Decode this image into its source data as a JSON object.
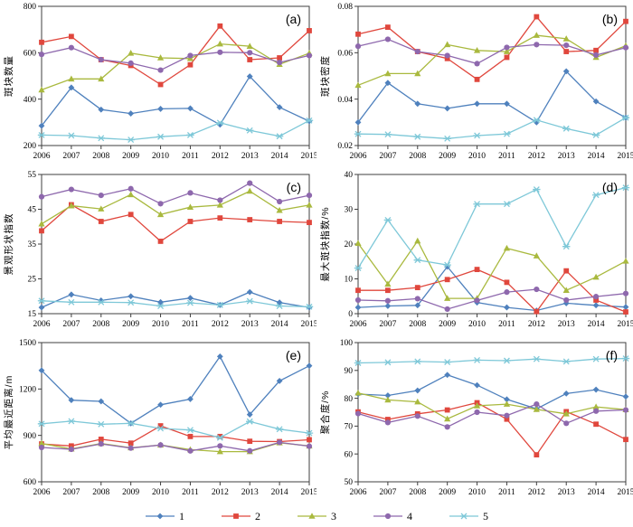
{
  "figure": {
    "background": "#ffffff",
    "frame_color": "#3f3f3f",
    "tick_text_color": "#000000"
  },
  "years": [
    "2006",
    "2007",
    "2008",
    "2009",
    "2010",
    "2011",
    "2012",
    "2013",
    "2014",
    "2015"
  ],
  "legend": {
    "items": [
      {
        "label": "1",
        "color": "#4f81bd",
        "marker": "diamond"
      },
      {
        "label": "2",
        "color": "#e0473d",
        "marker": "square"
      },
      {
        "label": "3",
        "color": "#a9b93e",
        "marker": "triangle"
      },
      {
        "label": "4",
        "color": "#8e68ad",
        "marker": "circle"
      },
      {
        "label": "5",
        "color": "#7ec8d8",
        "marker": "xcross"
      }
    ]
  },
  "chart_data": [
    {
      "type": "line",
      "panel_label": "(a)",
      "ylabel": "斑块数量",
      "xlabel": "",
      "ylim": [
        200,
        800
      ],
      "yticks": [
        200,
        400,
        600,
        800
      ],
      "ytick_labels": [
        "200",
        "400",
        "600",
        "800"
      ],
      "grid": false,
      "series": [
        {
          "name": "1",
          "marker": "diamond",
          "color": "#4f81bd",
          "values": [
            285,
            450,
            355,
            338,
            358,
            360,
            290,
            498,
            365,
            305
          ]
        },
        {
          "name": "2",
          "marker": "square",
          "color": "#e0473d",
          "values": [
            645,
            670,
            570,
            545,
            463,
            548,
            715,
            570,
            578,
            695
          ]
        },
        {
          "name": "3",
          "marker": "triangle",
          "color": "#a9b93e",
          "values": [
            440,
            487,
            487,
            598,
            578,
            575,
            638,
            628,
            550,
            598
          ]
        },
        {
          "name": "4",
          "marker": "circle",
          "color": "#8e68ad",
          "values": [
            593,
            622,
            570,
            555,
            525,
            588,
            602,
            600,
            558,
            588
          ]
        },
        {
          "name": "5",
          "marker": "xcross",
          "color": "#7ec8d8",
          "values": [
            245,
            243,
            232,
            225,
            238,
            245,
            298,
            265,
            240,
            308
          ]
        }
      ]
    },
    {
      "type": "line",
      "panel_label": "(b)",
      "ylabel": "斑块密度",
      "xlabel": "",
      "ylim": [
        0.02,
        0.08
      ],
      "yticks": [
        0.02,
        0.04,
        0.06,
        0.08
      ],
      "ytick_labels": [
        "0.02",
        "0.04",
        "0.06",
        "0.08"
      ],
      "grid": false,
      "series": [
        {
          "name": "1",
          "marker": "diamond",
          "color": "#4f81bd",
          "values": [
            0.03,
            0.047,
            0.038,
            0.036,
            0.038,
            0.038,
            0.03,
            0.052,
            0.039,
            0.032
          ]
        },
        {
          "name": "2",
          "marker": "square",
          "color": "#e0473d",
          "values": [
            0.068,
            0.071,
            0.0605,
            0.0575,
            0.0485,
            0.058,
            0.0755,
            0.0605,
            0.061,
            0.0735
          ]
        },
        {
          "name": "3",
          "marker": "triangle",
          "color": "#a9b93e",
          "values": [
            0.046,
            0.051,
            0.051,
            0.0635,
            0.061,
            0.0605,
            0.0675,
            0.066,
            0.058,
            0.063
          ]
        },
        {
          "name": "4",
          "marker": "circle",
          "color": "#8e68ad",
          "values": [
            0.0628,
            0.0658,
            0.0605,
            0.0588,
            0.0553,
            0.0623,
            0.0635,
            0.0632,
            0.059,
            0.0622
          ]
        },
        {
          "name": "5",
          "marker": "xcross",
          "color": "#7ec8d8",
          "values": [
            0.025,
            0.0248,
            0.0238,
            0.023,
            0.0243,
            0.025,
            0.031,
            0.0273,
            0.0245,
            0.032
          ]
        }
      ]
    },
    {
      "type": "line",
      "panel_label": "(c)",
      "ylabel": "景观形状指数",
      "xlabel": "",
      "ylim": [
        15,
        55
      ],
      "yticks": [
        15,
        25,
        35,
        45,
        55
      ],
      "ytick_labels": [
        "15",
        "25",
        "35",
        "45",
        "55"
      ],
      "grid": false,
      "series": [
        {
          "name": "1",
          "marker": "diamond",
          "color": "#4f81bd",
          "values": [
            16.8,
            20.5,
            18.8,
            20.0,
            18.3,
            19.5,
            17.5,
            21.2,
            18.2,
            16.8
          ]
        },
        {
          "name": "2",
          "marker": "square",
          "color": "#e0473d",
          "values": [
            38.8,
            46.3,
            41.5,
            43.5,
            35.8,
            41.5,
            42.5,
            42.0,
            41.5,
            41.2
          ]
        },
        {
          "name": "3",
          "marker": "triangle",
          "color": "#a9b93e",
          "values": [
            40.8,
            46.0,
            45.1,
            49.2,
            43.5,
            45.6,
            46.2,
            50.2,
            44.7,
            46.2
          ]
        },
        {
          "name": "4",
          "marker": "circle",
          "color": "#8e68ad",
          "values": [
            48.6,
            50.7,
            49.0,
            50.9,
            46.6,
            49.7,
            47.6,
            52.5,
            47.2,
            49.0
          ]
        },
        {
          "name": "5",
          "marker": "xcross",
          "color": "#7ec8d8",
          "values": [
            18.7,
            18.3,
            18.3,
            18.2,
            17.2,
            18.1,
            17.5,
            18.6,
            17.2,
            17.0
          ]
        }
      ]
    },
    {
      "type": "line",
      "panel_label": "(d)",
      "ylabel": "最大斑块指数/%",
      "xlabel": "",
      "ylim": [
        0,
        40
      ],
      "yticks": [
        0,
        10,
        20,
        30,
        40
      ],
      "ytick_labels": [
        "0",
        "10",
        "20",
        "30",
        "40"
      ],
      "grid": false,
      "series": [
        {
          "name": "1",
          "marker": "diamond",
          "color": "#4f81bd",
          "values": [
            1.8,
            2.2,
            2.4,
            13.5,
            3.2,
            1.8,
            0.9,
            3.0,
            2.4,
            1.9
          ]
        },
        {
          "name": "2",
          "marker": "square",
          "color": "#e0473d",
          "values": [
            6.7,
            6.7,
            7.5,
            9.8,
            12.7,
            9.0,
            0.6,
            12.3,
            3.9,
            0.5
          ]
        },
        {
          "name": "3",
          "marker": "triangle",
          "color": "#a9b93e",
          "values": [
            20.2,
            8.5,
            20.9,
            4.4,
            4.4,
            18.8,
            16.6,
            6.7,
            10.5,
            15.1
          ]
        },
        {
          "name": "4",
          "marker": "circle",
          "color": "#8e68ad",
          "values": [
            3.9,
            3.7,
            4.3,
            1.3,
            3.8,
            6.2,
            7.0,
            3.9,
            4.9,
            5.8
          ]
        },
        {
          "name": "5",
          "marker": "xcross",
          "color": "#7ec8d8",
          "values": [
            13.1,
            26.9,
            15.4,
            14.0,
            31.5,
            31.5,
            35.7,
            19.3,
            34.1,
            36.2
          ]
        }
      ]
    },
    {
      "type": "line",
      "panel_label": "(e)",
      "ylabel": "平均最近距离/m",
      "xlabel": "",
      "ylim": [
        600,
        1500
      ],
      "yticks": [
        600,
        900,
        1200,
        1500
      ],
      "ytick_labels": [
        "600",
        "900",
        "1200",
        "1500"
      ],
      "grid": false,
      "series": [
        {
          "name": "1",
          "marker": "diamond",
          "color": "#4f81bd",
          "values": [
            1320,
            1128,
            1120,
            978,
            1098,
            1135,
            1410,
            1035,
            1252,
            1350
          ]
        },
        {
          "name": "2",
          "marker": "square",
          "color": "#e0473d",
          "values": [
            845,
            832,
            875,
            850,
            962,
            893,
            893,
            862,
            860,
            872
          ]
        },
        {
          "name": "3",
          "marker": "triangle",
          "color": "#a9b93e",
          "values": [
            848,
            812,
            848,
            820,
            838,
            808,
            795,
            795,
            852,
            832
          ]
        },
        {
          "name": "4",
          "marker": "circle",
          "color": "#8e68ad",
          "values": [
            822,
            810,
            845,
            818,
            838,
            800,
            832,
            800,
            855,
            830
          ]
        },
        {
          "name": "5",
          "marker": "xcross",
          "color": "#7ec8d8",
          "values": [
            975,
            992,
            972,
            978,
            945,
            935,
            885,
            990,
            940,
            915
          ]
        }
      ]
    },
    {
      "type": "line",
      "panel_label": "(f)",
      "ylabel": "聚合度/%",
      "xlabel": "",
      "ylim": [
        50,
        100
      ],
      "yticks": [
        50,
        60,
        70,
        80,
        90,
        100
      ],
      "ytick_labels": [
        "50",
        "60",
        "70",
        "80",
        "90",
        "100"
      ],
      "grid": false,
      "series": [
        {
          "name": "1",
          "marker": "diamond",
          "color": "#4f81bd",
          "values": [
            81.5,
            81.0,
            82.8,
            88.4,
            84.7,
            79.6,
            76.2,
            81.7,
            83.1,
            80.6
          ]
        },
        {
          "name": "2",
          "marker": "square",
          "color": "#e0473d",
          "values": [
            75.1,
            72.4,
            74.4,
            75.8,
            78.4,
            72.5,
            59.7,
            75.2,
            70.7,
            65.2
          ]
        },
        {
          "name": "3",
          "marker": "triangle",
          "color": "#a9b93e",
          "values": [
            81.9,
            79.4,
            78.7,
            72.6,
            77.3,
            77.9,
            76.0,
            74.4,
            76.9,
            75.9
          ]
        },
        {
          "name": "4",
          "marker": "circle",
          "color": "#8e68ad",
          "values": [
            74.5,
            71.3,
            73.6,
            69.7,
            75.0,
            73.8,
            77.9,
            71.0,
            75.4,
            75.8
          ]
        },
        {
          "name": "5",
          "marker": "xcross",
          "color": "#7ec8d8",
          "values": [
            92.7,
            92.9,
            93.2,
            93.0,
            93.7,
            93.5,
            94.1,
            93.2,
            94.1,
            94.3
          ]
        }
      ]
    }
  ]
}
